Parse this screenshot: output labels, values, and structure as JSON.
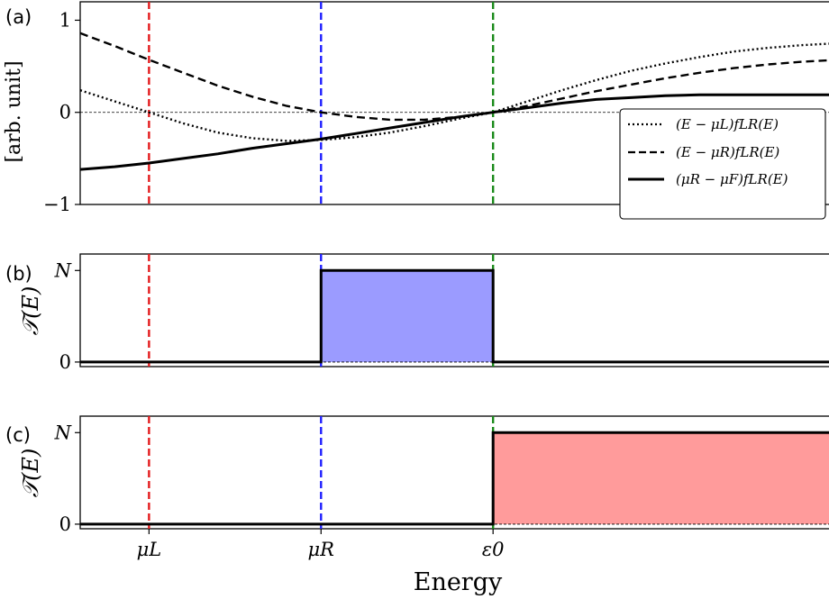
{
  "chart_data": {
    "type": "line",
    "xlabel": "Energy",
    "x_ticks": [
      {
        "x": 1.0,
        "label": "μL"
      },
      {
        "x": 3.5,
        "label": "μR"
      },
      {
        "x": 6.0,
        "label": "ε0"
      }
    ],
    "vlines": [
      {
        "x": 1.0,
        "color": "#e31a1c",
        "style": "dashed"
      },
      {
        "x": 3.5,
        "color": "#1f1fff",
        "style": "dashed"
      },
      {
        "x": 6.0,
        "color": "#1a8a1a",
        "style": "dashed"
      }
    ],
    "panels": [
      {
        "label": "(a)",
        "ylabel": "[arb. unit]",
        "ylim": [
          -1,
          1.2
        ],
        "yticks": [
          -1,
          0,
          1
        ],
        "zero_line": true,
        "legend": "right",
        "series": [
          {
            "name": "(E − μL)fLR(E)",
            "style": "dotted",
            "x": [
              0,
              0.5,
              1,
              1.5,
              2,
              2.5,
              3,
              3.5,
              4,
              4.5,
              5,
              5.5,
              6,
              6.5,
              7,
              7.5,
              8,
              8.5,
              9,
              9.5,
              10,
              10.5,
              11
            ],
            "y": [
              0.24,
              0.12,
              0.0,
              -0.12,
              -0.22,
              -0.28,
              -0.31,
              -0.3,
              -0.27,
              -0.22,
              -0.15,
              -0.07,
              0.0,
              0.12,
              0.24,
              0.35,
              0.45,
              0.53,
              0.6,
              0.66,
              0.7,
              0.73,
              0.75
            ]
          },
          {
            "name": "(E − μR)fLR(E)",
            "style": "dashed",
            "x": [
              0,
              0.5,
              1,
              1.5,
              2,
              2.5,
              3,
              3.5,
              4,
              4.5,
              5,
              5.5,
              6,
              6.5,
              7,
              7.5,
              8,
              8.5,
              9,
              9.5,
              10,
              10.5,
              11
            ],
            "y": [
              0.86,
              0.72,
              0.57,
              0.43,
              0.29,
              0.17,
              0.07,
              0.0,
              -0.05,
              -0.08,
              -0.08,
              -0.05,
              0.0,
              0.07,
              0.15,
              0.23,
              0.3,
              0.37,
              0.43,
              0.48,
              0.52,
              0.55,
              0.57
            ]
          },
          {
            "name": "(μR − μF)fLR(E)",
            "style": "solid",
            "x": [
              0,
              0.5,
              1,
              1.5,
              2,
              2.5,
              3,
              3.5,
              4,
              4.5,
              5,
              5.5,
              6,
              6.5,
              7,
              7.5,
              8,
              8.5,
              9,
              9.5,
              10,
              10.5,
              11
            ],
            "y": [
              -0.62,
              -0.59,
              -0.55,
              -0.5,
              -0.45,
              -0.39,
              -0.34,
              -0.29,
              -0.23,
              -0.17,
              -0.11,
              -0.05,
              0.0,
              0.05,
              0.1,
              0.14,
              0.16,
              0.18,
              0.19,
              0.19,
              0.19,
              0.19,
              0.19
            ]
          }
        ]
      },
      {
        "label": "(b)",
        "ylabel": "𝒯(E)",
        "yticks": [
          {
            "v": 0,
            "label": "0"
          },
          {
            "v": 1,
            "label": "N"
          }
        ],
        "ylim": [
          -0.05,
          1.18
        ],
        "window": [
          3.5,
          6.0
        ],
        "fill": "#9b9bff",
        "step": {
          "x": [
            0,
            3.5,
            3.5,
            6.0,
            6.0,
            11
          ],
          "y": [
            0,
            0,
            1,
            1,
            0,
            0
          ]
        }
      },
      {
        "label": "(c)",
        "ylabel": "𝒯(E)",
        "yticks": [
          {
            "v": 0,
            "label": "0"
          },
          {
            "v": 1,
            "label": "N"
          }
        ],
        "ylim": [
          -0.05,
          1.18
        ],
        "window": [
          6.0,
          11
        ],
        "fill": "#ff9b9b",
        "step": {
          "x": [
            0,
            6.0,
            6.0,
            11
          ],
          "y": [
            0,
            0,
            1,
            1
          ]
        }
      }
    ],
    "xlim": [
      0,
      11
    ]
  }
}
